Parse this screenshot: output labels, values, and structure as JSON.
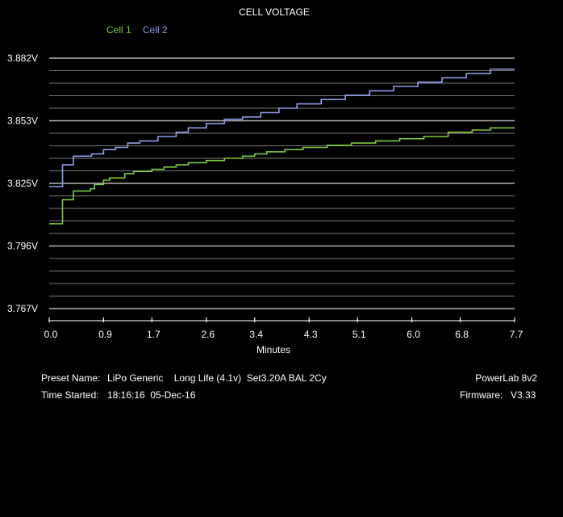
{
  "chart_data": {
    "type": "line",
    "title": "CELL VOLTAGE",
    "xlabel": "Minutes",
    "ylabel": "",
    "x_ticks": [
      "0.0",
      "0.9",
      "1.7",
      "2.6",
      "3.4",
      "4.3",
      "5.1",
      "6.0",
      "6.8",
      "7.7"
    ],
    "y_ticks": [
      "3.882V",
      "3.853V",
      "3.825V",
      "3.796V",
      "3.767V"
    ],
    "xlim": [
      0,
      7.7
    ],
    "ylim": [
      3.767,
      3.882
    ],
    "grid": true,
    "legend_position": "top-left",
    "series": [
      {
        "name": "Cell 1",
        "color": "#7ccc3c",
        "x": [
          0.0,
          0.2,
          0.22,
          0.35,
          0.4,
          0.55,
          0.68,
          0.75,
          0.9,
          1.0,
          1.15,
          1.25,
          1.4,
          1.5,
          1.7,
          1.9,
          2.1,
          2.3,
          2.6,
          2.9,
          3.2,
          3.4,
          3.6,
          3.9,
          4.2,
          4.6,
          5.0,
          5.4,
          5.8,
          6.2,
          6.6,
          7.0,
          7.3,
          7.7
        ],
        "y": [
          3.806,
          3.806,
          3.817,
          3.817,
          3.821,
          3.821,
          3.822,
          3.824,
          3.826,
          3.827,
          3.827,
          3.829,
          3.83,
          3.83,
          3.831,
          3.832,
          3.833,
          3.834,
          3.835,
          3.836,
          3.837,
          3.838,
          3.839,
          3.84,
          3.841,
          3.842,
          3.843,
          3.844,
          3.845,
          3.846,
          3.848,
          3.849,
          3.85,
          3.85
        ]
      },
      {
        "name": "Cell 2",
        "color": "#8e9be8",
        "x": [
          0.0,
          0.2,
          0.22,
          0.35,
          0.4,
          0.55,
          0.7,
          0.9,
          1.1,
          1.3,
          1.5,
          1.8,
          2.1,
          2.3,
          2.6,
          2.9,
          3.2,
          3.5,
          3.8,
          4.1,
          4.5,
          4.9,
          5.3,
          5.7,
          6.1,
          6.5,
          6.9,
          7.3,
          7.7
        ],
        "y": [
          3.823,
          3.823,
          3.833,
          3.833,
          3.837,
          3.837,
          3.838,
          3.84,
          3.841,
          3.843,
          3.844,
          3.846,
          3.848,
          3.85,
          3.852,
          3.854,
          3.855,
          3.857,
          3.859,
          3.861,
          3.863,
          3.865,
          3.867,
          3.869,
          3.871,
          3.873,
          3.875,
          3.877,
          3.877
        ]
      }
    ]
  },
  "info": {
    "preset_label": "Preset Name:",
    "preset_value": "LiPo Generic    Long Life (4.1v)  Set3.20A BAL 2Cy",
    "time_label": "Time Started:",
    "time_value": "18:16:16  05-Dec-16",
    "device": "PowerLab 8v2",
    "firmware_label": "Firmware:",
    "firmware_value": "V3.33"
  }
}
